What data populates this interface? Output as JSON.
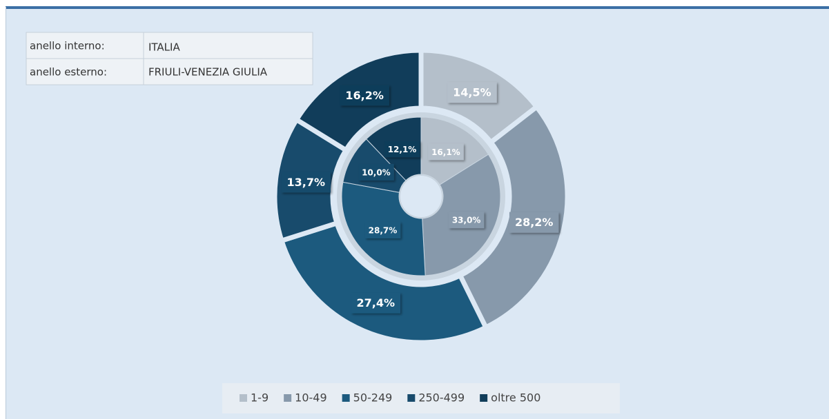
{
  "chart_data": {
    "type": "donut",
    "categories": [
      "1-9",
      "10-49",
      "50-249",
      "250-499",
      "oltre 500"
    ],
    "colors": [
      "#b4bfca",
      "#8799ab",
      "#1c5a7e",
      "#184b6c",
      "#113d5a"
    ],
    "series": [
      {
        "ring": "anello interno:",
        "name": "ITALIA",
        "values": [
          16.1,
          33.0,
          28.7,
          10.0,
          12.1
        ],
        "value_labels": [
          "16,1%",
          "33,0%",
          "28,7%",
          "10,0%",
          "12,1%"
        ]
      },
      {
        "ring": "anello esterno:",
        "name": "FRIULI-VENEZIA GIULIA",
        "values": [
          14.5,
          28.2,
          27.4,
          13.7,
          16.2
        ],
        "value_labels": [
          "14,5%",
          "28,2%",
          "27,4%",
          "13,7%",
          "16,2%"
        ]
      }
    ]
  }
}
